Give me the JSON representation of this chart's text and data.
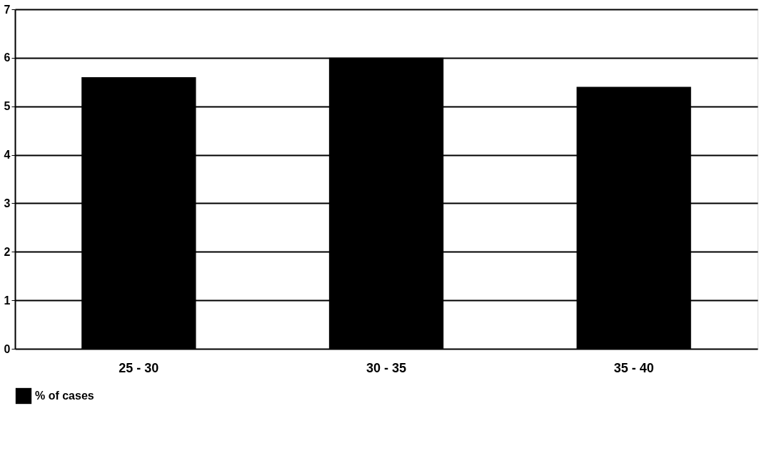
{
  "chart_data": {
    "type": "bar",
    "categories": [
      "25 - 30",
      "30 - 35",
      "35 - 40"
    ],
    "series": [
      {
        "name": "% of cases",
        "color": "#000000",
        "values": [
          5.6,
          6.0,
          5.4
        ]
      }
    ],
    "ylim": [
      0,
      7
    ],
    "yticks": [
      0,
      1,
      2,
      3,
      4,
      5,
      6,
      7
    ],
    "grid": "y",
    "legend": "bottom"
  }
}
